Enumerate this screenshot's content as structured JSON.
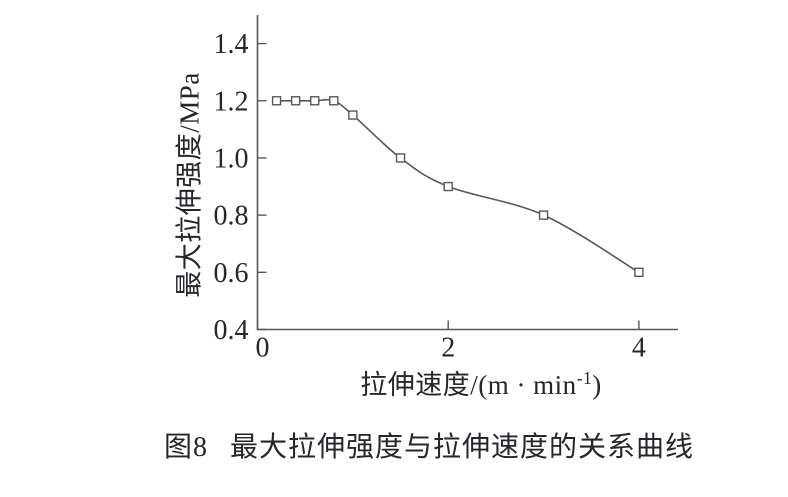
{
  "figure": {
    "caption_prefix": "图8",
    "caption_text": "最大拉伸强度与拉伸速度的关系曲线"
  },
  "labels": {
    "xlabel_pre": "拉伸速度/(m · min",
    "xlabel_sup": "-1",
    "xlabel_post": ")"
  },
  "chart_data": {
    "type": "line",
    "title": "",
    "xlabel": "拉伸速度/(m·min⁻¹)",
    "ylabel": "最大拉伸强度/MPa",
    "x": [
      0.2,
      0.4,
      0.6,
      0.8,
      1.0,
      1.5,
      2.0,
      3.0,
      4.0
    ],
    "y": [
      1.2,
      1.2,
      1.2,
      1.2,
      1.15,
      1.0,
      0.9,
      0.8,
      0.6
    ],
    "xlim": [
      0,
      4.41
    ],
    "ylim": [
      0.4,
      1.5
    ],
    "xticks": {
      "values": [
        0,
        2,
        4
      ],
      "labels": [
        "0",
        "2",
        "4"
      ]
    },
    "yticks": {
      "values": [
        1.4,
        1.2,
        1.0,
        0.8,
        0.6,
        0.4
      ],
      "labels": [
        "1.4",
        "1.2",
        "1.0",
        "0.8",
        "0.6",
        "0.4"
      ]
    },
    "marker": "open-square",
    "grid": false,
    "legend": null,
    "colors": {
      "line": "#58585b",
      "marker_fill": "#ffffff",
      "text": "#26262b"
    }
  }
}
